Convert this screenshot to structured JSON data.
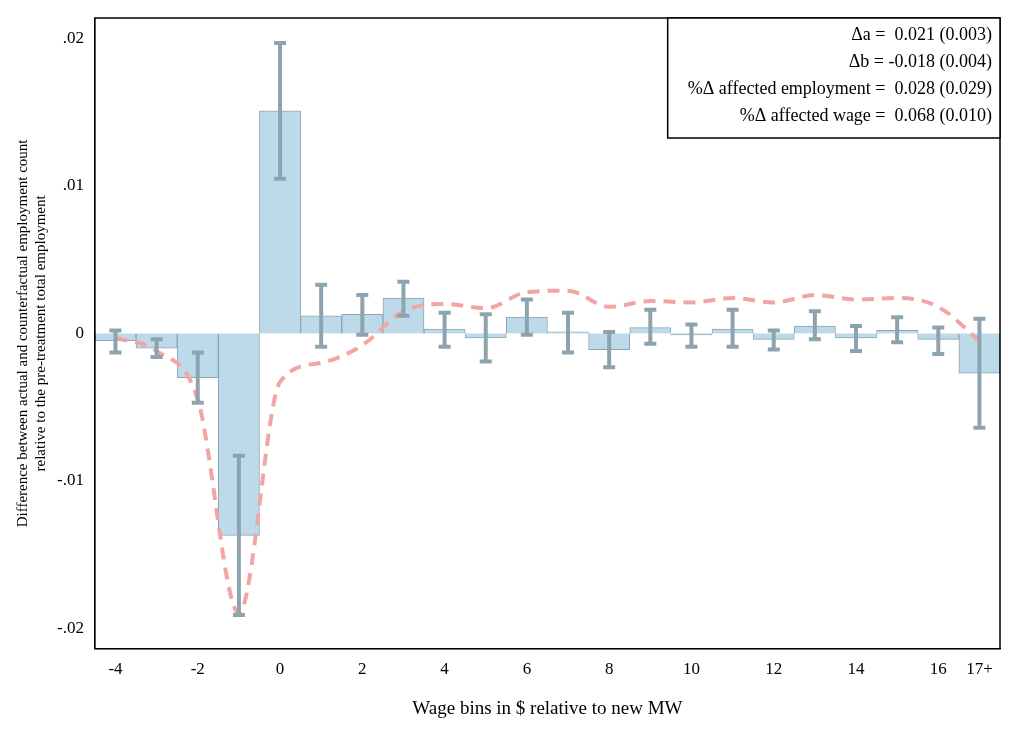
{
  "chart_data": {
    "type": "bar",
    "x_label": "Wage bins in $ relative to new MW",
    "y_label": [
      "Difference between actual and counterfactual employment count",
      "relative to the pre-treatment total employment"
    ],
    "annotations": [
      "Δa =  0.021 (0.003)",
      "Δb = -0.018 (0.004)",
      "%Δ affected employment =  0.028 (0.029)",
      "%Δ affected wage =  0.068 (0.010)"
    ],
    "categories": [
      "-4",
      null,
      "-2",
      null,
      "0",
      null,
      "2",
      null,
      "4",
      null,
      "6",
      null,
      "8",
      null,
      "10",
      null,
      "12",
      null,
      "14",
      null,
      "16",
      "17+"
    ],
    "series": [
      {
        "type": "bar",
        "color": "#bddaea",
        "values": [
          -0.0005,
          -0.001,
          -0.003,
          -0.0137,
          0.0151,
          0.0012,
          0.0013,
          0.0024,
          0.0003,
          -0.0003,
          0.0011,
          0.0001,
          -0.0011,
          0.0004,
          -0.0001,
          0.0003,
          -0.0004,
          0.0005,
          -0.0003,
          0.0002,
          -0.0004,
          -0.0027
        ],
        "error_bars": [
          [
            -0.0013,
            0.0002
          ],
          [
            -0.0016,
            -0.0004
          ],
          [
            -0.0047,
            -0.0013
          ],
          [
            -0.0191,
            -0.0083
          ],
          [
            0.0105,
            0.0197
          ],
          [
            -0.0009,
            0.0033
          ],
          [
            -0.0001,
            0.0026
          ],
          [
            0.0012,
            0.0035
          ],
          [
            -0.0009,
            0.0014
          ],
          [
            -0.0019,
            0.0013
          ],
          [
            -0.0001,
            0.0023
          ],
          [
            -0.0013,
            0.0014
          ],
          [
            -0.0023,
            0.0001
          ],
          [
            -0.0007,
            0.0016
          ],
          [
            -0.0009,
            0.0006
          ],
          [
            -0.0009,
            0.0016
          ],
          [
            -0.0011,
            0.0002
          ],
          [
            -0.0004,
            0.0015
          ],
          [
            -0.0012,
            0.0005
          ],
          [
            -0.0006,
            0.0011
          ],
          [
            -0.0014,
            0.0004
          ],
          [
            -0.0064,
            0.001
          ]
        ]
      },
      {
        "type": "line",
        "color": "#f2a5a5",
        "line_style": "dashed",
        "values": [
          -0.0003,
          -0.0012,
          -0.0045,
          -0.019,
          -0.0033,
          -0.002,
          -0.0008,
          0.0015,
          0.002,
          0.0017,
          0.0028,
          0.0029,
          0.0018,
          0.0022,
          0.0021,
          0.0024,
          0.0021,
          0.0026,
          0.0023,
          0.0024,
          0.0018,
          -0.0005
        ]
      }
    ],
    "ylim": [
      -0.0214,
      0.0214
    ],
    "yticks": [
      {
        "value": -0.02,
        "label": "-.02"
      },
      {
        "value": -0.01,
        "label": "-.01"
      },
      0,
      {
        "value": 0.01,
        "label": ".01"
      },
      {
        "value": 0.02,
        "label": ".02"
      }
    ],
    "grid": false,
    "legend": false
  }
}
